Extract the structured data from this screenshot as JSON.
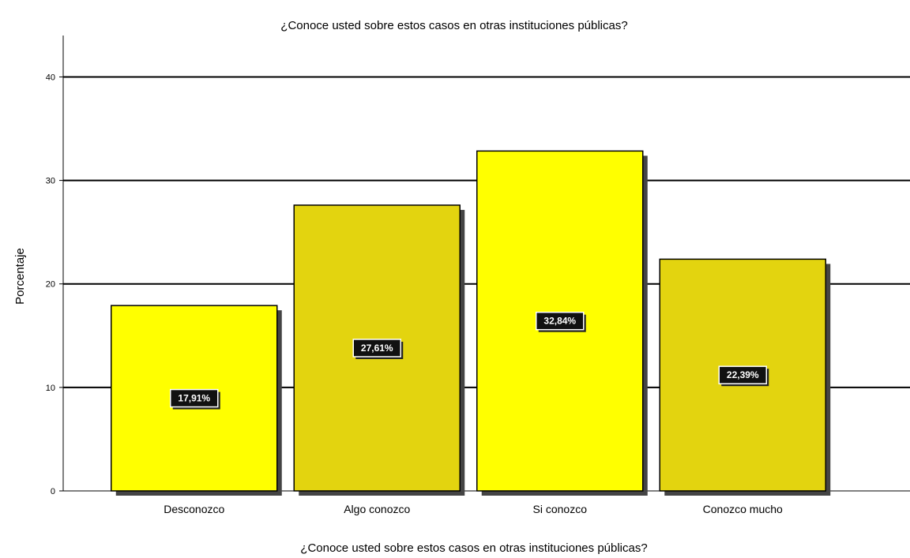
{
  "chart_data": {
    "type": "bar",
    "title": "¿Conoce usted sobre estos casos en otras instituciones públicas?",
    "xlabel": "¿Conoce usted sobre estos casos en otras instituciones públicas?",
    "ylabel": "Porcentaje",
    "categories": [
      "Desconozco",
      "Algo conozco",
      "Si conozco",
      "Conozco mucho"
    ],
    "values": [
      17.91,
      27.61,
      32.84,
      22.39
    ],
    "data_labels": [
      "17,91%",
      "27,61%",
      "32,84%",
      "22,39%"
    ],
    "yticks": [
      0,
      10,
      20,
      30,
      40
    ],
    "ylim": [
      0,
      44
    ],
    "grid": true,
    "colors": [
      "#ffff00",
      "#e3d40f",
      "#ffff00",
      "#e3d40f"
    ]
  }
}
